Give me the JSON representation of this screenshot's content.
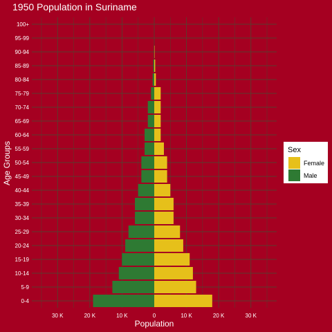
{
  "chart_data": {
    "type": "bar",
    "orientation": "horizontal",
    "title": "1950 Population in Suriname",
    "xlabel": "Population",
    "ylabel": "Age Groups",
    "categories": [
      "0-4",
      "5-9",
      "10-14",
      "15-19",
      "20-24",
      "25-29",
      "30-34",
      "35-39",
      "40-44",
      "45-49",
      "50-54",
      "55-59",
      "60-64",
      "65-69",
      "70-74",
      "75-79",
      "80-84",
      "85-89",
      "90-94",
      "95-99",
      "100+"
    ],
    "series": [
      {
        "name": "Female",
        "color": "#e6c01a",
        "values": [
          18000,
          13000,
          12000,
          11000,
          9000,
          8000,
          6000,
          6000,
          5000,
          4000,
          4000,
          3000,
          2000,
          2000,
          2000,
          2000,
          500,
          300,
          100,
          0,
          0
        ]
      },
      {
        "name": "Male",
        "color": "#2e7a33",
        "values": [
          19000,
          13000,
          11000,
          10000,
          9000,
          8000,
          6000,
          6000,
          5000,
          4000,
          4000,
          3000,
          3000,
          2000,
          2000,
          1000,
          500,
          300,
          100,
          0,
          0
        ]
      }
    ],
    "xlim": [
      -38000,
      38000
    ],
    "xticks": [
      -30000,
      -20000,
      -10000,
      0,
      10000,
      20000,
      30000
    ],
    "xtick_labels": [
      "30 K",
      "20 K",
      "10 K",
      "0",
      "10 K",
      "20 K",
      "30 K"
    ],
    "legend": {
      "title": "Sex",
      "position": "right",
      "entries": [
        "Female",
        "Male"
      ]
    },
    "grid": true,
    "background_color": "#a50021",
    "grid_color": "#5a3d2e"
  }
}
